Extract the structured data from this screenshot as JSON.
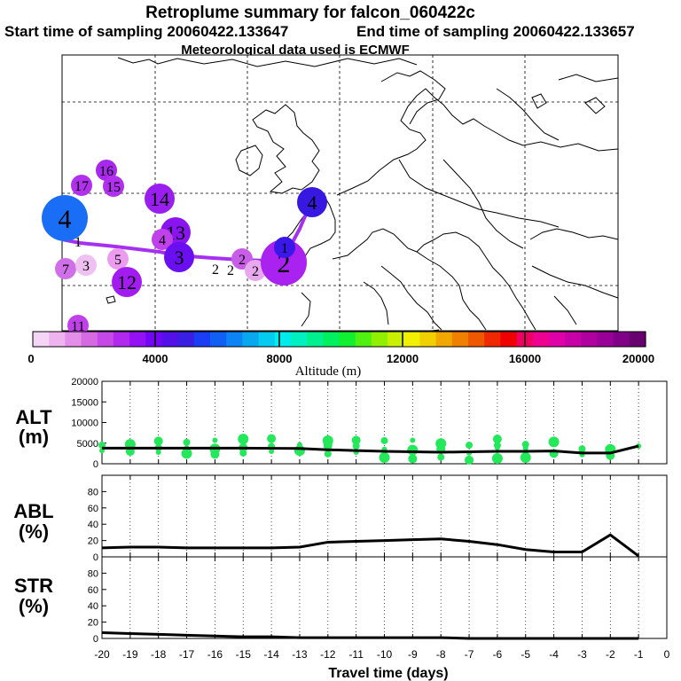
{
  "header": {
    "title": "Retroplume summary for falcon_060422c",
    "start_label": "Start time of sampling 20060422.133647",
    "end_label": "End time of sampling 20060422.133657",
    "met_label": "Meteorological data used is ECMWF"
  },
  "colorbar": {
    "ticks": [
      "0",
      "4000",
      "8000",
      "12000",
      "16000",
      "20000"
    ],
    "label": "Altitude (m)",
    "colors": [
      "#f5d5f5",
      "#efb3f0",
      "#e38ee8",
      "#d66ae2",
      "#c648e6",
      "#b128ee",
      "#9410f5",
      "#7406f5",
      "#5410e8",
      "#3a1ee2",
      "#1a3ef5",
      "#1060f5",
      "#0c84f5",
      "#08a8f0",
      "#04ccf0",
      "#00ecec",
      "#00f0c0",
      "#00f090",
      "#00f060",
      "#10f030",
      "#50f010",
      "#90f000",
      "#c8f000",
      "#f0f000",
      "#f0d000",
      "#f0a800",
      "#f08000",
      "#f05800",
      "#f02800",
      "#f00000",
      "#f00060",
      "#f00090",
      "#e000a8",
      "#c800a8",
      "#b000a0",
      "#980098",
      "#800088",
      "#680070"
    ]
  },
  "map": {
    "clusters": [
      {
        "label": "4",
        "alt": 4600,
        "size": "large",
        "color": "#1a6ef5"
      },
      {
        "label": "1",
        "alt": 3500,
        "size": "small",
        "color": "#b040e8"
      },
      {
        "label": "17",
        "alt": 2500,
        "size": "small",
        "color": "#b030ee"
      },
      {
        "label": "16",
        "alt": 2600,
        "size": "small",
        "color": "#a828ee"
      },
      {
        "label": "15",
        "alt": 2600,
        "size": "small",
        "color": "#b030ee"
      },
      {
        "label": "14",
        "alt": 3100,
        "size": "medium",
        "color": "#9a1ef0"
      },
      {
        "label": "13",
        "alt": 3700,
        "size": "medium",
        "color": "#8a14f0"
      },
      {
        "label": "4",
        "alt": 2700,
        "size": "small",
        "color": "#c040ea"
      },
      {
        "label": "3",
        "alt": 4400,
        "size": "medium",
        "color": "#6a10f0"
      },
      {
        "label": "7",
        "alt": 2000,
        "size": "small",
        "color": "#d070e8"
      },
      {
        "label": "3",
        "alt": 1200,
        "size": "small",
        "color": "#efc0f2"
      },
      {
        "label": "5",
        "alt": 1400,
        "size": "small",
        "color": "#ec9cee"
      },
      {
        "label": "12",
        "alt": 3100,
        "size": "medium",
        "color": "#a21cf0"
      },
      {
        "label": "11",
        "alt": 2500,
        "size": "small",
        "color": "#c040ea"
      },
      {
        "label": "2",
        "alt": 1000,
        "size": "small",
        "color": "#f2cef4"
      },
      {
        "label": "2",
        "alt": 1000,
        "size": "small",
        "color": "#f2cef4"
      },
      {
        "label": "2",
        "alt": 2300,
        "size": "small",
        "color": "#c85ee8"
      },
      {
        "label": "2",
        "alt": 1200,
        "size": "small",
        "color": "#e8a8ee"
      },
      {
        "label": "2",
        "alt": 3700,
        "size": "large",
        "color": "#aa22f0"
      },
      {
        "label": "1",
        "alt": 4700,
        "size": "small",
        "color": "#3a18ea"
      },
      {
        "label": "4",
        "alt": 4800,
        "size": "medium",
        "color": "#3618e0"
      }
    ]
  },
  "chart_data": [
    {
      "type": "line",
      "panel": "ALT",
      "ylabel_1": "ALT",
      "ylabel_2": "(m)",
      "ylim": [
        0,
        20000
      ],
      "yticks": [
        "0",
        "5000",
        "10000",
        "15000",
        "20000"
      ],
      "x": [
        -20,
        -19,
        -18,
        -17,
        -16,
        -15,
        -14,
        -13,
        -12,
        -11,
        -10,
        -9,
        -8,
        -7,
        -6,
        -5,
        -4,
        -3,
        -2,
        -1
      ],
      "values": [
        3800,
        3800,
        3800,
        3800,
        3800,
        3800,
        3750,
        3700,
        3400,
        3200,
        3000,
        2900,
        2800,
        2900,
        3000,
        3000,
        3100,
        2600,
        2600,
        4300
      ],
      "scatter": [
        {
          "x": -20,
          "y": 3200
        },
        {
          "x": -20,
          "y": 4500
        },
        {
          "x": -19,
          "y": 3000
        },
        {
          "x": -19,
          "y": 4700
        },
        {
          "x": -18,
          "y": 2800
        },
        {
          "x": -18,
          "y": 3900
        },
        {
          "x": -18,
          "y": 5500
        },
        {
          "x": -17,
          "y": 2500
        },
        {
          "x": -17,
          "y": 3800
        },
        {
          "x": -17,
          "y": 5200
        },
        {
          "x": -16,
          "y": 2300
        },
        {
          "x": -16,
          "y": 3600
        },
        {
          "x": -16,
          "y": 5700
        },
        {
          "x": -15,
          "y": 2600
        },
        {
          "x": -15,
          "y": 3900
        },
        {
          "x": -15,
          "y": 6000
        },
        {
          "x": -14,
          "y": 3000
        },
        {
          "x": -14,
          "y": 4200
        },
        {
          "x": -14,
          "y": 6100
        },
        {
          "x": -13,
          "y": 3200
        },
        {
          "x": -13,
          "y": 4600
        },
        {
          "x": -12,
          "y": 2400
        },
        {
          "x": -12,
          "y": 4400
        },
        {
          "x": -12,
          "y": 5600
        },
        {
          "x": -11,
          "y": 2800
        },
        {
          "x": -11,
          "y": 4300
        },
        {
          "x": -11,
          "y": 5700
        },
        {
          "x": -10,
          "y": 1500
        },
        {
          "x": -10,
          "y": 3500
        },
        {
          "x": -10,
          "y": 5600
        },
        {
          "x": -9,
          "y": 1200
        },
        {
          "x": -9,
          "y": 3300
        },
        {
          "x": -9,
          "y": 5700
        },
        {
          "x": -8,
          "y": 1600
        },
        {
          "x": -8,
          "y": 3600
        },
        {
          "x": -8,
          "y": 4900
        },
        {
          "x": -7,
          "y": 2600
        },
        {
          "x": -7,
          "y": 4500
        },
        {
          "x": -7,
          "y": 900
        },
        {
          "x": -6,
          "y": 1300
        },
        {
          "x": -6,
          "y": 3900
        },
        {
          "x": -6,
          "y": 4500
        },
        {
          "x": -6,
          "y": 6000
        },
        {
          "x": -5,
          "y": 1500
        },
        {
          "x": -5,
          "y": 3800
        },
        {
          "x": -5,
          "y": 4700
        },
        {
          "x": -4,
          "y": 2500
        },
        {
          "x": -4,
          "y": 5300
        },
        {
          "x": -3,
          "y": 2200
        },
        {
          "x": -3,
          "y": 3600
        },
        {
          "x": -2,
          "y": 2000
        },
        {
          "x": -2,
          "y": 3500
        },
        {
          "x": -1,
          "y": 4300
        }
      ]
    },
    {
      "type": "line",
      "panel": "ABL",
      "ylabel_1": "ABL",
      "ylabel_2": "(%)",
      "ylim": [
        0,
        100
      ],
      "yticks": [
        "0",
        "20",
        "40",
        "60",
        "80"
      ],
      "x": [
        -20,
        -19,
        -18,
        -17,
        -16,
        -15,
        -14,
        -13,
        -12,
        -11,
        -10,
        -9,
        -8,
        -7,
        -6,
        -5,
        -4,
        -3,
        -2,
        -1
      ],
      "values": [
        11,
        12,
        12,
        11,
        11,
        11,
        11,
        12,
        18,
        19,
        20,
        21,
        22,
        19,
        15,
        9,
        6,
        6,
        27,
        1
      ]
    },
    {
      "type": "line",
      "panel": "STR",
      "ylabel_1": "STR",
      "ylabel_2": "(%)",
      "ylim": [
        0,
        100
      ],
      "yticks": [
        "0",
        "20",
        "40",
        "60",
        "80"
      ],
      "x": [
        -20,
        -19,
        -18,
        -17,
        -16,
        -15,
        -14,
        -13,
        -12,
        -11,
        -10,
        -9,
        -8,
        -7,
        -6,
        -5,
        -4,
        -3,
        -2,
        -1
      ],
      "values": [
        7,
        6,
        5,
        4,
        3,
        2,
        2,
        1,
        1,
        1,
        1,
        1,
        1,
        0,
        0,
        0,
        0,
        0,
        0,
        0
      ],
      "xlabel": "Travel time (days)",
      "xticks": [
        "-20",
        "-19",
        "-18",
        "-17",
        "-16",
        "-15",
        "-14",
        "-13",
        "-12",
        "-11",
        "-10",
        "-9",
        "-8",
        "-7",
        "-6",
        "-5",
        "-4",
        "-3",
        "-2",
        "-1",
        "0"
      ]
    }
  ]
}
